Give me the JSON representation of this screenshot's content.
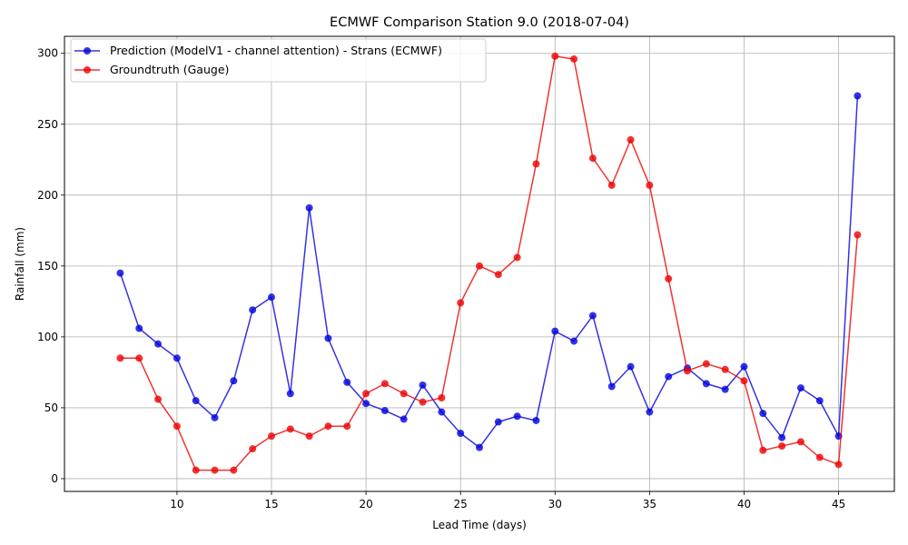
{
  "chart_data": {
    "type": "line",
    "title": "ECMWF Comparison Station 9.0 (2018-07-04)",
    "xlabel": "Lead Time (days)",
    "ylabel": "Rainfall (mm)",
    "xlim": [
      4.05,
      47.95
    ],
    "ylim": [
      -9,
      312
    ],
    "xticks": [
      10,
      15,
      20,
      25,
      30,
      35,
      40,
      45
    ],
    "yticks": [
      0,
      50,
      100,
      150,
      200,
      250,
      300
    ],
    "grid": true,
    "legend_position": "top-left",
    "x": [
      7,
      8,
      9,
      10,
      11,
      12,
      13,
      14,
      15,
      16,
      17,
      18,
      19,
      20,
      21,
      22,
      23,
      24,
      25,
      26,
      27,
      28,
      29,
      30,
      31,
      32,
      33,
      34,
      35,
      36,
      37,
      38,
      39,
      40,
      41,
      42,
      43,
      44,
      45,
      46
    ],
    "series": [
      {
        "name": "Prediction (ModelV1 - channel attention) - Strans (ECMWF)",
        "color": "#0000dd",
        "values": [
          145,
          106,
          95,
          85,
          55,
          43,
          69,
          119,
          128,
          60,
          191,
          99,
          68,
          53,
          48,
          42,
          66,
          47,
          32,
          22,
          40,
          44,
          41,
          104,
          97,
          115,
          65,
          79,
          47,
          72,
          78,
          67,
          63,
          79,
          46,
          29,
          64,
          55,
          30,
          270
        ]
      },
      {
        "name": "Groundtruth (Gauge)",
        "color": "#ee0000",
        "values": [
          85,
          85,
          56,
          37,
          6,
          6,
          6,
          21,
          30,
          35,
          30,
          37,
          37,
          60,
          67,
          60,
          54,
          57,
          124,
          150,
          144,
          156,
          222,
          298,
          296,
          226,
          207,
          239,
          207,
          141,
          76,
          81,
          77,
          69,
          20,
          23,
          26,
          15,
          10,
          172
        ]
      }
    ]
  }
}
